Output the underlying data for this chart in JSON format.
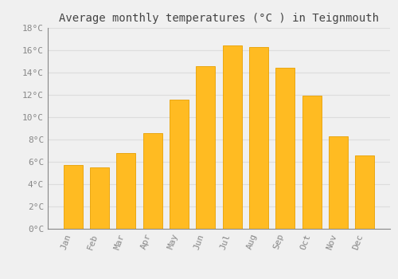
{
  "title": "Average monthly temperatures (°C ) in Teignmouth",
  "months": [
    "Jan",
    "Feb",
    "Mar",
    "Apr",
    "May",
    "Jun",
    "Jul",
    "Aug",
    "Sep",
    "Oct",
    "Nov",
    "Dec"
  ],
  "values": [
    5.7,
    5.5,
    6.8,
    8.6,
    11.6,
    14.6,
    16.4,
    16.3,
    14.4,
    11.9,
    8.3,
    6.6
  ],
  "bar_color": "#FFBB22",
  "bar_edge_color": "#E8A000",
  "background_color": "#F0F0F0",
  "grid_color": "#DDDDDD",
  "ylim": [
    0,
    18
  ],
  "yticks": [
    0,
    2,
    4,
    6,
    8,
    10,
    12,
    14,
    16,
    18
  ],
  "tick_label_color": "#888888",
  "title_color": "#444444",
  "title_fontsize": 10,
  "tick_fontsize": 8,
  "font_family": "monospace"
}
